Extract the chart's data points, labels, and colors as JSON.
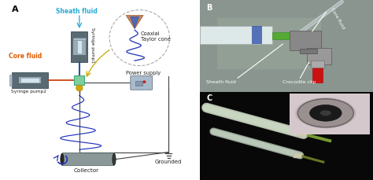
{
  "figure_width": 4.74,
  "figure_height": 2.29,
  "dpi": 100,
  "panel_A_label": "A",
  "panel_B_label": "B",
  "panel_C_label": "C",
  "sheath_fluid_label": "Sheath fluid",
  "sheath_fluid_color": "#29a9d6",
  "core_fluid_label": "Core fluid",
  "core_fluid_color": "#e05a00",
  "syringe_pump1_label": "Syringe pump1",
  "syringe_pump2_label": "Syringe pump2",
  "collector_label": "Collector",
  "grounded_label": "Grounded",
  "power_supply_label": "Power supply",
  "coaxial_taylor_cone_label": "Coaxial\nTaylor cone",
  "sheath_fluid_B_label": "Sheath fluid",
  "core_fluid_B_label": "Core fluid",
  "crocodile_clip_label": "Crocodile clip",
  "pump1_color": "#5a6a72",
  "pump2_color": "#5a6a72",
  "connector_color": "#7ecea0",
  "needle_blue_color": "#2255aa",
  "collector_body_color": "#8a9898",
  "collector_end_color": "#2a2a2a",
  "wire_color": "#444444",
  "spiral_color": "#2233bb",
  "spiral_color2": "#4455cc",
  "droplet_color": "#d4a800",
  "arrow_color": "#c8a800",
  "ps_body_color": "#aabbcc",
  "panel_bg": "#f5f5f5",
  "panel_B_bg": "#8a9090",
  "panel_C_bg": "#0a0a0a"
}
